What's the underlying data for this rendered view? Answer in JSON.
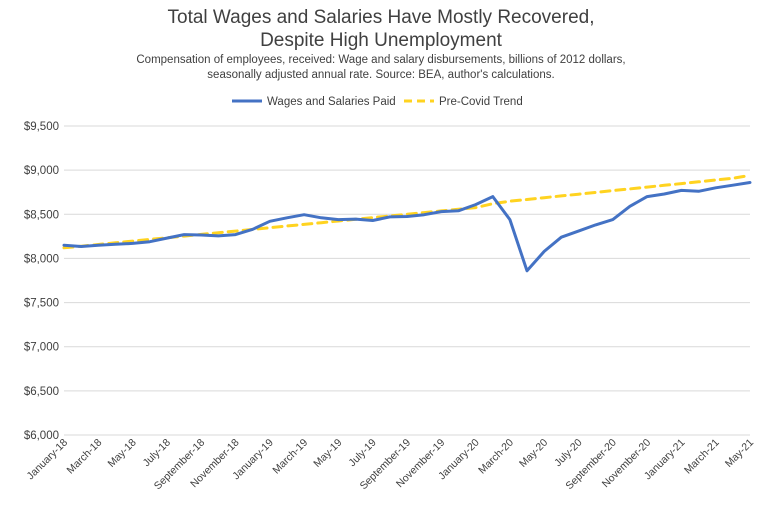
{
  "chart_data": {
    "type": "line",
    "title_lines": [
      "Total Wages and Salaries Have Mostly Recovered,",
      "Despite High Unemployment"
    ],
    "subtitle_lines": [
      "Compensation of employees, received: Wage and salary disbursements, billions of 2012 dollars,",
      "seasonally adjusted annual rate. Source: BEA, author's calculations."
    ],
    "legend_position": "top",
    "grid": "horizontal",
    "ylim": [
      6000,
      9500
    ],
    "yticks": [
      6000,
      6500,
      7000,
      7500,
      8000,
      8500,
      9000,
      9500
    ],
    "ytick_labels": [
      "$6,000",
      "$6,500",
      "$7,000",
      "$7,500",
      "$8,000",
      "$8,500",
      "$9,000",
      "$9,500"
    ],
    "x": [
      "January-18",
      "February-18",
      "March-18",
      "April-18",
      "May-18",
      "June-18",
      "July-18",
      "August-18",
      "September-18",
      "October-18",
      "November-18",
      "December-18",
      "January-19",
      "February-19",
      "March-19",
      "April-19",
      "May-19",
      "June-19",
      "July-19",
      "August-19",
      "September-19",
      "October-19",
      "November-19",
      "December-19",
      "January-20",
      "February-20",
      "March-20",
      "April-20",
      "May-20",
      "June-20",
      "July-20",
      "August-20",
      "September-20",
      "October-20",
      "November-20",
      "December-20",
      "January-21",
      "February-21",
      "March-21",
      "April-21",
      "May-21"
    ],
    "xtick_labels": [
      "January-18",
      "March-18",
      "May-18",
      "July-18",
      "September-18",
      "November-18",
      "January-19",
      "March-19",
      "May-19",
      "July-19",
      "September-19",
      "November-19",
      "January-20",
      "March-20",
      "May-20",
      "July-20",
      "September-20",
      "November-20",
      "January-21",
      "March-21",
      "May-21"
    ],
    "series": [
      {
        "name": "Wages and Salaries Paid",
        "color": "#4472c4",
        "style": "solid",
        "values": [
          8150,
          8135,
          8150,
          8160,
          8170,
          8190,
          8230,
          8270,
          8265,
          8255,
          8270,
          8330,
          8420,
          8460,
          8495,
          8460,
          8440,
          8445,
          8430,
          8470,
          8475,
          8495,
          8530,
          8540,
          8610,
          8700,
          8440,
          7860,
          8080,
          8240,
          8310,
          8380,
          8440,
          8590,
          8700,
          8730,
          8770,
          8760,
          8800,
          8830,
          8860
        ]
      },
      {
        "name": "Pre-Covid Trend",
        "color": "#ffd320",
        "style": "dashed",
        "values": [
          8120,
          8139,
          8158,
          8177,
          8196,
          8215,
          8234,
          8253,
          8272,
          8291,
          8310,
          8329,
          8348,
          8367,
          8386,
          8405,
          8424,
          8443,
          8462,
          8481,
          8500,
          8519,
          8538,
          8557,
          8576,
          8620,
          8648,
          8668,
          8688,
          8708,
          8728,
          8748,
          8768,
          8788,
          8808,
          8828,
          8848,
          8868,
          8888,
          8908,
          8940
        ]
      }
    ]
  }
}
